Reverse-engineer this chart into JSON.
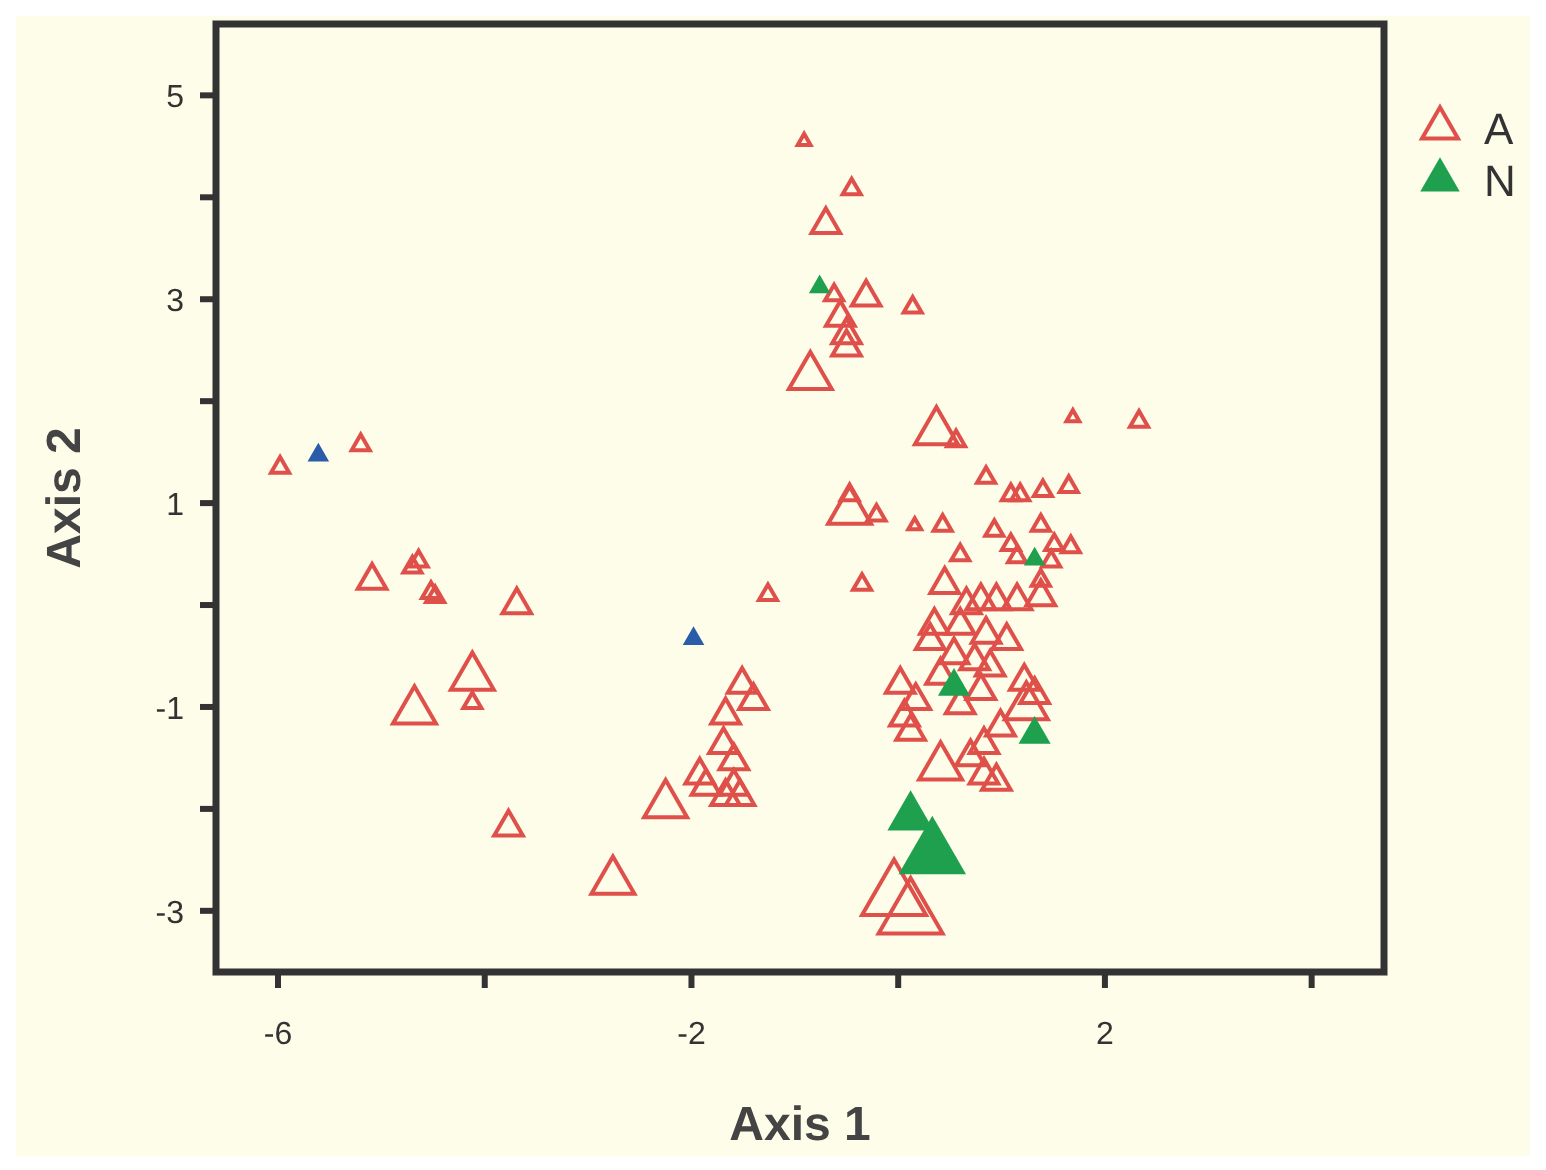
{
  "chart_data": {
    "type": "bubble",
    "xlabel": "Axis 1",
    "ylabel": "Axis 2",
    "xlim": [
      -6.6,
      4.7
    ],
    "ylim": [
      -3.6,
      5.7
    ],
    "xticks": [
      -6,
      {
        "value": -4,
        "label": null
      },
      -2,
      {
        "value": 0,
        "label": null
      },
      2,
      {
        "value": 4,
        "label": null
      }
    ],
    "yticks": [
      {
        "value": -3,
        "label": "-3"
      },
      {
        "value": -2,
        "label": null
      },
      -1,
      {
        "value": 0,
        "label": null
      },
      1,
      {
        "value": 2,
        "label": null
      },
      3,
      {
        "value": 4,
        "label": null
      },
      5
    ],
    "marker": "triangle",
    "legend": "right",
    "grid": false,
    "series": [
      {
        "name": "A",
        "color": "#e0504a",
        "x": [
          -5.98,
          -5.2,
          -5.09,
          -4.7,
          -4.64,
          -4.52,
          -4.48,
          -3.69,
          -4.68,
          -4.12,
          -4.12,
          -3.77,
          -2.76,
          -1.26,
          -1.51,
          -1.4,
          -1.67,
          -1.69,
          -1.59,
          -1.92,
          -1.86,
          -1.59,
          -1.67,
          -1.53,
          -2.25,
          -0.91,
          -0.45,
          -0.7,
          -0.62,
          -0.31,
          0.14,
          -0.56,
          -0.5,
          -0.5,
          -0.85,
          0.37,
          0.56,
          1.69,
          2.33,
          0.85,
          1.09,
          1.18,
          1.4,
          1.65,
          -0.47,
          -0.47,
          -0.21,
          0.16,
          0.43,
          0.93,
          1.09,
          1.38,
          1.51,
          1.67,
          0.6,
          1.15,
          1.48,
          -0.35,
          0.45,
          1.38,
          0.8,
          0.95,
          1.15,
          1.38,
          0.66,
          0.35,
          0.6,
          0.85,
          1.05,
          0.31,
          0.54,
          0.74,
          0.89,
          0.41,
          0.02,
          0.8,
          1.22,
          1.32,
          0.17,
          0.6,
          1.24,
          0.06,
          0.12,
          0.99,
          0.83,
          0.41,
          0.7,
          0.83,
          0.95,
          -0.04,
          0.12
        ],
        "values": [
          1.35,
          1.57,
          0.24,
          0.37,
          0.43,
          0.12,
          0.08,
          0,
          -1.04,
          -0.71,
          -0.96,
          -2.18,
          -2.71,
          0.1,
          -0.78,
          -0.94,
          -1.08,
          -1.37,
          -1.53,
          -1.67,
          -1.78,
          -1.78,
          -1.88,
          -1.88,
          -1.96,
          4.55,
          4.08,
          3.73,
          3.04,
          3.02,
          2.92,
          2.82,
          2.65,
          2.53,
          2.24,
          1.7,
          1.61,
          1.84,
          1.8,
          1.25,
          1.08,
          1.08,
          1.12,
          1.16,
          1.08,
          0.92,
          0.88,
          0.78,
          0.78,
          0.73,
          0.59,
          0.78,
          0.59,
          0.57,
          0.49,
          0.47,
          0.43,
          0.2,
          0.2,
          0.24,
          0.04,
          0.04,
          0.04,
          0.08,
          0,
          -0.2,
          -0.2,
          -0.29,
          -0.35,
          -0.35,
          -0.49,
          -0.55,
          -0.61,
          -0.69,
          -0.78,
          -0.84,
          -0.75,
          -0.88,
          -0.94,
          -0.98,
          -1.0,
          -1.1,
          -1.24,
          -1.2,
          -1.37,
          -1.59,
          -1.49,
          -1.67,
          -1.73,
          -2.86,
          -3.04
        ],
        "sizes": [
          0.08,
          0.08,
          0.2,
          0.08,
          0.08,
          0.08,
          0.08,
          0.2,
          0.45,
          0.45,
          0.08,
          0.2,
          0.45,
          0.08,
          0.2,
          0.2,
          0.2,
          0.2,
          0.2,
          0.2,
          0.2,
          0.2,
          0.2,
          0.2,
          0.45,
          0.04,
          0.08,
          0.2,
          0.08,
          0.2,
          0.08,
          0.2,
          0.2,
          0.2,
          0.45,
          0.45,
          0.08,
          0.04,
          0.08,
          0.08,
          0.08,
          0.08,
          0.08,
          0.08,
          0.08,
          0.45,
          0.08,
          0.04,
          0.08,
          0.08,
          0.08,
          0.08,
          0.08,
          0.08,
          0.08,
          0.08,
          0.08,
          0.08,
          0.2,
          0.08,
          0.2,
          0.2,
          0.2,
          0.2,
          0.2,
          0.2,
          0.2,
          0.2,
          0.2,
          0.2,
          0.2,
          0.2,
          0.2,
          0.2,
          0.2,
          0.2,
          0.2,
          0.2,
          0.2,
          0.2,
          0.45,
          0.2,
          0.2,
          0.2,
          0.2,
          0.45,
          0.2,
          0.2,
          0.2,
          1,
          1
        ]
      },
      {
        "name": "N",
        "color": "#1fa04f",
        "x": [
          -0.76,
          1.32,
          0.54,
          1.32,
          0.12,
          0.33
        ],
        "values": [
          3.12,
          0.45,
          -0.8,
          -1.27,
          -2.08,
          -2.45
        ],
        "sizes": [
          0.08,
          0.08,
          0.2,
          0.2,
          0.45,
          1
        ]
      },
      {
        "color": "#2a5caa",
        "x": [
          -5.61,
          -1.98
        ],
        "values": [
          1.47,
          -0.33
        ],
        "sizes": [
          0.08,
          0.08
        ]
      }
    ]
  }
}
